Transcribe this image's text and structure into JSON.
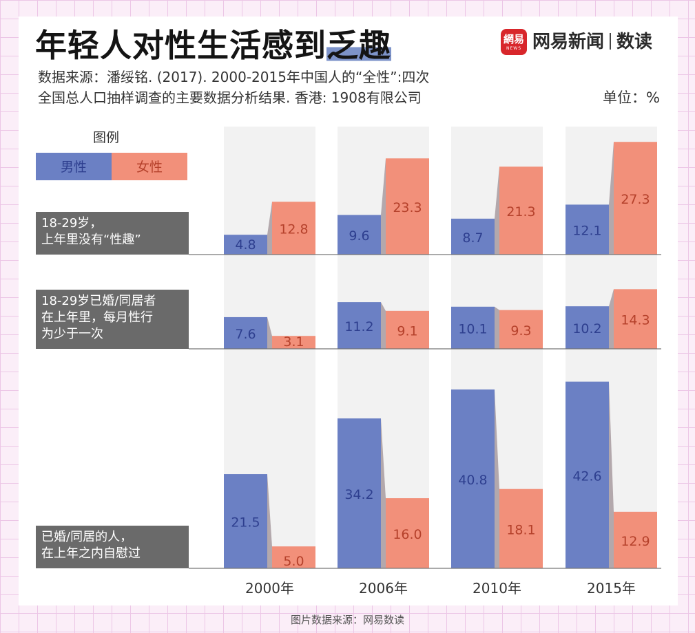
{
  "header": {
    "title_main": "年轻人对性生活感到",
    "title_highlight": "乏趣",
    "logo_badge_text": "網易",
    "logo_badge_sub": "NEWS",
    "brand_name": "网易新闻",
    "brand_sub": "数读",
    "source_line1": "数据来源：潘绥铭. (2017). 2000-2015年中国人的“全性”:四次",
    "source_line2": "全国总人口抽样调查的主要数据分析结果. 香港: 1908有限公司",
    "unit": "单位：%"
  },
  "colors": {
    "male": "#6b80c4",
    "female": "#f2907a",
    "male_label": "#2e3f8f",
    "female_label": "#b5412b",
    "column_bg": "#f2f2f2",
    "label_box": "#6a6a6a",
    "connector": "#b3a8ac"
  },
  "chart_data": {
    "type": "bar",
    "legend": {
      "title": "图例",
      "male": "男性",
      "female": "女性",
      "placement": "top-left"
    },
    "categories": [
      "2000年",
      "2006年",
      "2010年",
      "2015年"
    ],
    "panels": [
      {
        "label_lines": [
          "18-29岁，",
          "上年里没有“性趣”"
        ],
        "ylim": [
          0,
          30
        ],
        "series": [
          {
            "name": "男性",
            "values": [
              4.8,
              9.6,
              8.7,
              12.1
            ]
          },
          {
            "name": "女性",
            "values": [
              12.8,
              23.3,
              21.3,
              27.3
            ]
          }
        ],
        "value_labels": {
          "male": [
            "4.8",
            "9.6",
            "8.7",
            "12.1"
          ],
          "female": [
            "12.8",
            "23.3",
            "21.3",
            "27.3"
          ]
        }
      },
      {
        "label_lines": [
          "18-29岁已婚/同居者",
          "在上年里，每月性行",
          "为少于一次"
        ],
        "ylim": [
          0,
          16
        ],
        "series": [
          {
            "name": "男性",
            "values": [
              7.6,
              11.2,
              10.1,
              10.2
            ]
          },
          {
            "name": "女性",
            "values": [
              3.1,
              9.1,
              9.3,
              14.3
            ]
          }
        ],
        "value_labels": {
          "male": [
            "7.6",
            "11.2",
            "10.1",
            "10.2"
          ],
          "female": [
            "3.1",
            "9.1",
            "9.3",
            "14.3"
          ]
        }
      },
      {
        "label_lines": [
          "已婚/同居的人，",
          "在上年之内自慰过"
        ],
        "ylim": [
          0,
          46
        ],
        "series": [
          {
            "name": "男性",
            "values": [
              21.5,
              34.2,
              40.8,
              42.6
            ]
          },
          {
            "name": "女性",
            "values": [
              5.0,
              16.0,
              18.1,
              12.9
            ]
          }
        ],
        "value_labels": {
          "male": [
            "21.5",
            "34.2",
            "40.8",
            "42.6"
          ],
          "female": [
            "5.0",
            "16.0",
            "18.1",
            "12.9"
          ]
        }
      }
    ]
  },
  "footer": {
    "text": "图片数据来源：网易数读"
  }
}
